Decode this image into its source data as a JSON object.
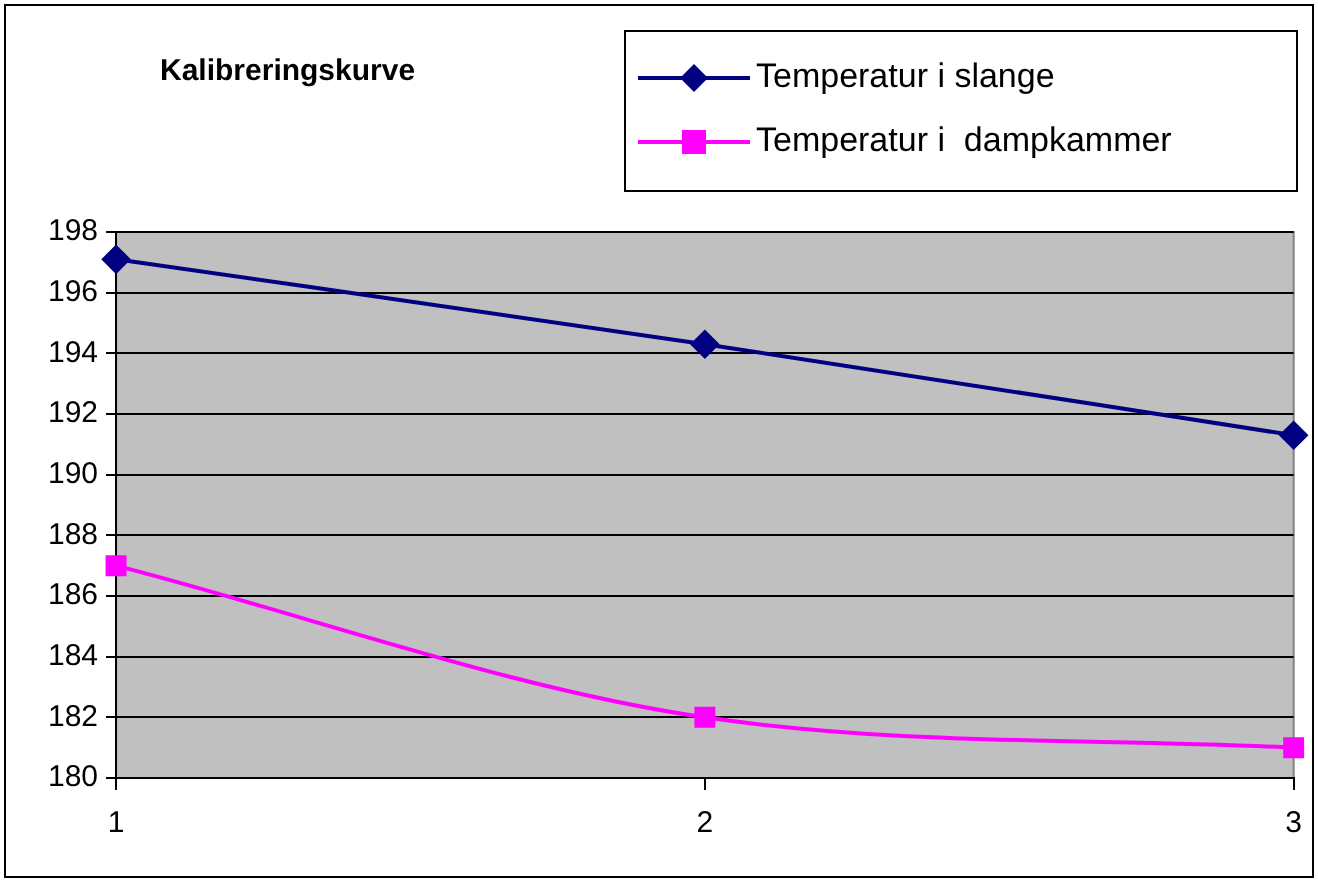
{
  "chart_data": {
    "type": "line",
    "title": "Kalibreringskurve",
    "x": [
      1,
      2,
      3
    ],
    "xlim": [
      1,
      3
    ],
    "xticks": [
      1,
      2,
      3
    ],
    "ylim": [
      180,
      198
    ],
    "yticks": [
      180,
      182,
      184,
      186,
      188,
      190,
      192,
      194,
      196,
      198
    ],
    "grid": "y",
    "legend": "top right",
    "series": [
      {
        "name": "Temperatur i slange",
        "color": "#000080",
        "values": [
          197.1,
          194.3,
          191.3
        ],
        "marker": "diamond"
      },
      {
        "name": "Temperatur i  dampkammer",
        "color": "#ff00ff",
        "values": [
          187,
          182,
          181
        ],
        "marker": "square"
      }
    ]
  }
}
